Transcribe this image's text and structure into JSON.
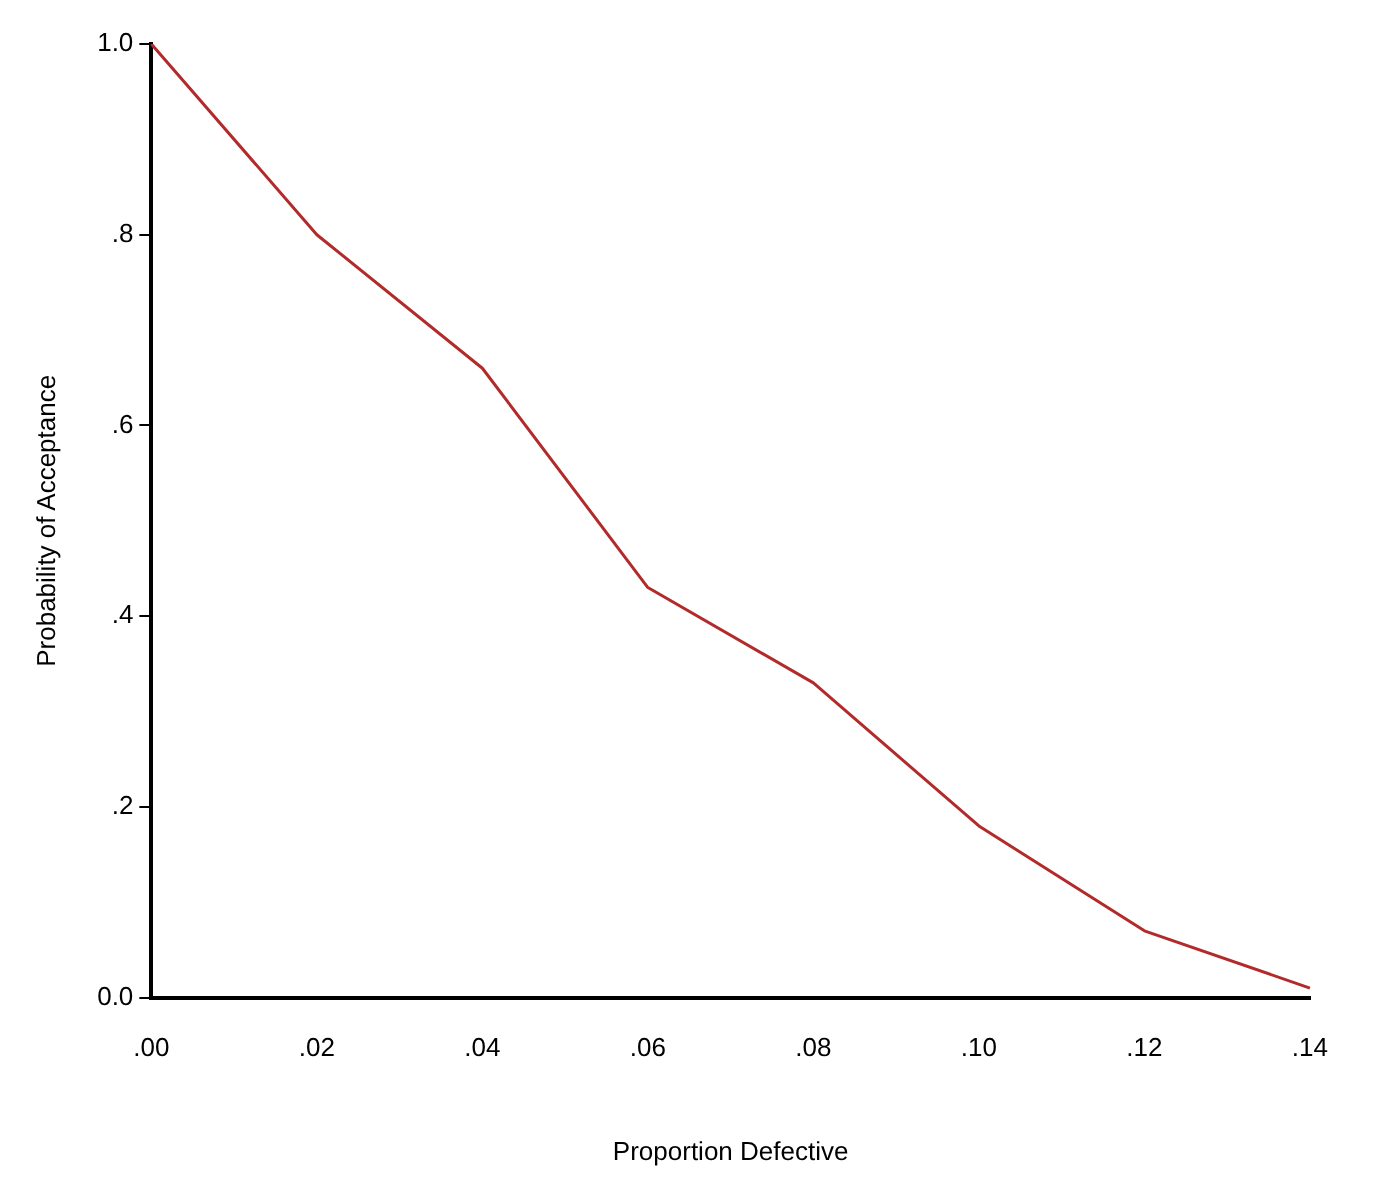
{
  "chart_data": {
    "type": "line",
    "xlabel": "Proportion Defective",
    "ylabel": "Probability of Acceptance",
    "categories": [
      ".00",
      ".02",
      ".04",
      ".06",
      ".08",
      ".10",
      ".12",
      ".14"
    ],
    "series": [
      {
        "color": "#b22a2a",
        "values": [
          1.0,
          0.8,
          0.66,
          0.43,
          0.33,
          0.18,
          0.07,
          0.01
        ]
      }
    ],
    "ylim": [
      0,
      1
    ],
    "yticks": [
      {
        "value": 0,
        "label": "0.0"
      },
      {
        "value": 0.2,
        "label": ".2"
      },
      {
        "value": 0.4,
        "label": ".4"
      },
      {
        "value": 0.6,
        "label": ".6"
      },
      {
        "value": 0.8,
        "label": ".8"
      },
      {
        "value": 1,
        "label": "1.0"
      }
    ],
    "grid": false,
    "legend": false,
    "marker": "none"
  }
}
